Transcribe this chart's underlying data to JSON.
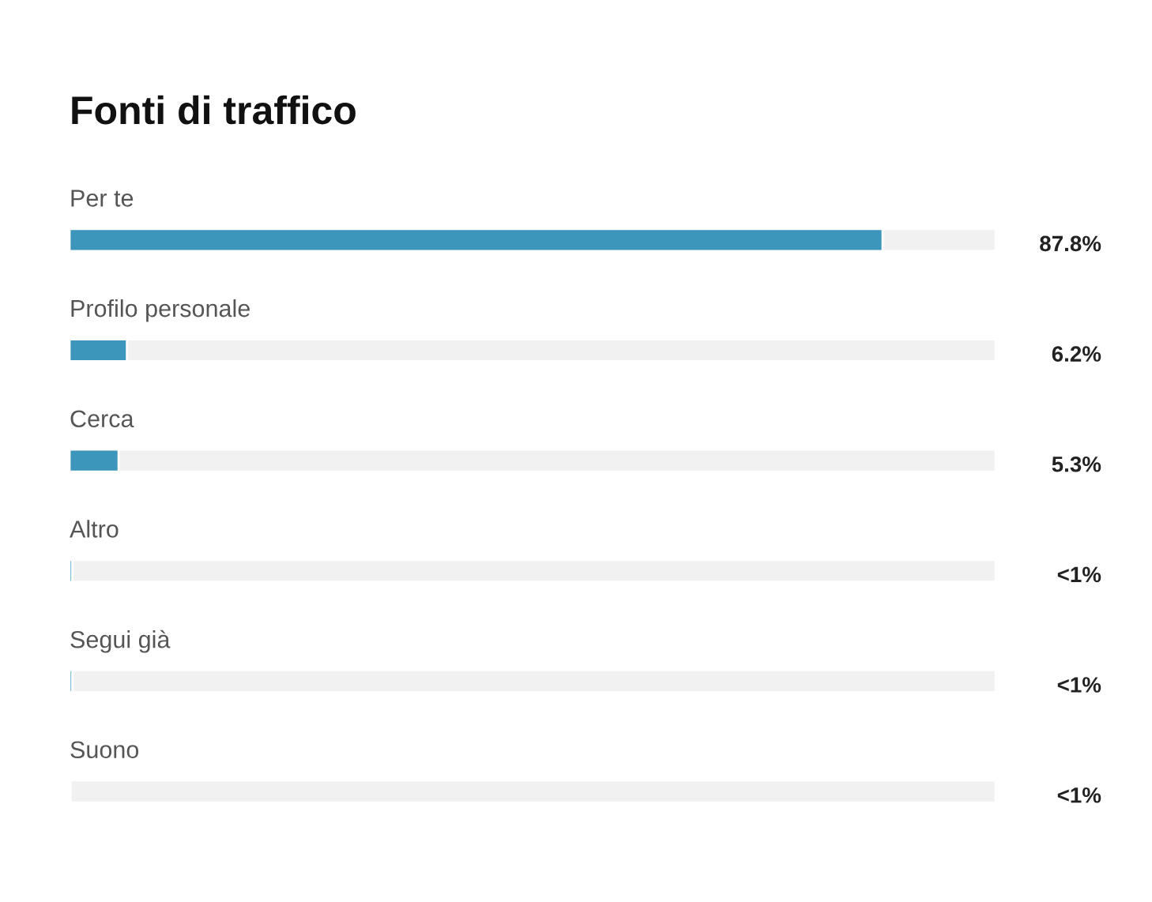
{
  "chart_data": {
    "type": "bar",
    "title": "Fonti di traffico",
    "orientation": "horizontal",
    "categories": [
      "Per te",
      "Profilo personale",
      "Cerca",
      "Altro",
      "Segui già",
      "Suono"
    ],
    "values": [
      87.8,
      6.2,
      5.3,
      0.3,
      0.3,
      0.1
    ],
    "value_labels": [
      "87.8%",
      "6.2%",
      "5.3%",
      "<1%",
      "<1%",
      "<1%"
    ],
    "color": "#3c95bb",
    "xlim": [
      0,
      100
    ],
    "tick_labels": false
  }
}
